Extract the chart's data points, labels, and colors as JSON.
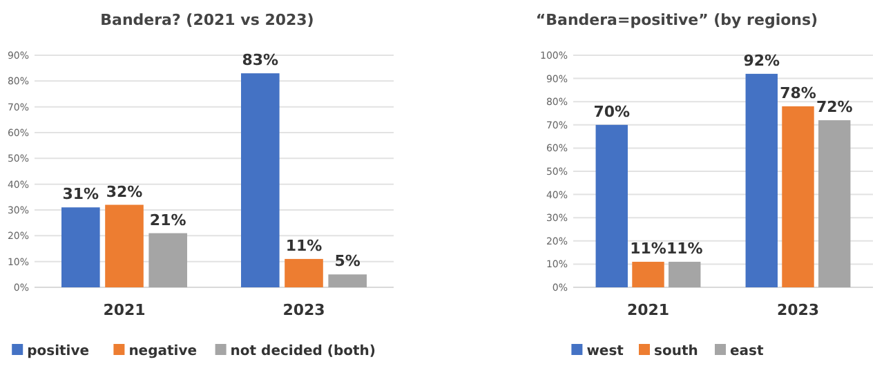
{
  "chart_data": [
    {
      "type": "bar",
      "title": "Bandera? (2021 vs 2023)",
      "categories": [
        "2021",
        "2023"
      ],
      "series": [
        {
          "name": "positive",
          "color": "#4472c4",
          "values": [
            31,
            83
          ],
          "value_labels": [
            "31%",
            "83%"
          ]
        },
        {
          "name": "negative",
          "color": "#ed7d31",
          "values": [
            32,
            11
          ],
          "value_labels": [
            "32%",
            "11%"
          ]
        },
        {
          "name": "not decided (both)",
          "color": "#a5a5a5",
          "values": [
            21,
            5
          ],
          "value_labels": [
            "21%",
            "5%"
          ]
        }
      ],
      "ylim": [
        0,
        90
      ],
      "yticks": [
        {
          "value": 0,
          "label": "0%"
        },
        {
          "value": 10,
          "label": "10%"
        },
        {
          "value": 20,
          "label": "20%"
        },
        {
          "value": 30,
          "label": "30%"
        },
        {
          "value": 40,
          "label": "40%"
        },
        {
          "value": 50,
          "label": "50%"
        },
        {
          "value": 60,
          "label": "60%"
        },
        {
          "value": 70,
          "label": "70%"
        },
        {
          "value": 80,
          "label": "80%"
        },
        {
          "value": 90,
          "label": "90%"
        }
      ],
      "grid": "y",
      "legend": "bottom"
    },
    {
      "type": "bar",
      "title": "“Bandera=positive” (by regions)",
      "categories": [
        "2021",
        "2023"
      ],
      "series": [
        {
          "name": "west",
          "color": "#4472c4",
          "values": [
            70,
            92
          ],
          "value_labels": [
            "70%",
            "92%"
          ]
        },
        {
          "name": "south",
          "color": "#ed7d31",
          "values": [
            11,
            78
          ],
          "value_labels": [
            "11%",
            "78%"
          ]
        },
        {
          "name": "east",
          "color": "#a5a5a5",
          "values": [
            11,
            72
          ],
          "value_labels": [
            "11%",
            "72%"
          ]
        }
      ],
      "ylim": [
        0,
        100
      ],
      "yticks": [
        {
          "value": 0,
          "label": "0%"
        },
        {
          "value": 10,
          "label": "10%"
        },
        {
          "value": 20,
          "label": "20%"
        },
        {
          "value": 30,
          "label": "30%"
        },
        {
          "value": 40,
          "label": "40%"
        },
        {
          "value": 50,
          "label": "50%"
        },
        {
          "value": 60,
          "label": "60%"
        },
        {
          "value": 70,
          "label": "70%"
        },
        {
          "value": 80,
          "label": "80%"
        },
        {
          "value": 90,
          "label": "90%"
        },
        {
          "value": 100,
          "label": "100%"
        }
      ],
      "grid": "y",
      "legend": "bottom"
    }
  ]
}
